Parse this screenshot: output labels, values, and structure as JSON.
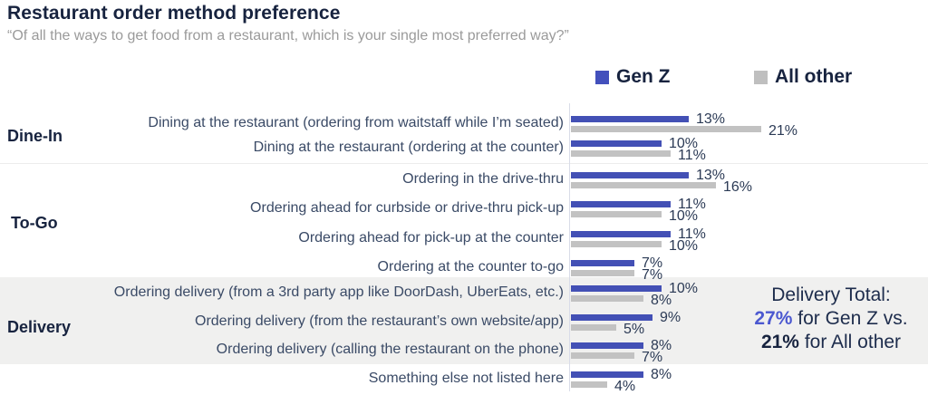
{
  "header": {
    "title": "Restaurant order method preference",
    "subtitle": "“Of all the ways to get food from a restaurant, which is your single most preferred way?”"
  },
  "legend": {
    "items": [
      {
        "label": "Gen Z",
        "color": "#4350bc"
      },
      {
        "label": "All other",
        "color": "#bfbfbf"
      }
    ]
  },
  "annotation": {
    "title_line": "Delivery Total:",
    "genz_value": "27%",
    "genz_text": " for Gen Z vs.",
    "other_value": "21%",
    "other_text": " for All other"
  },
  "chart_data": {
    "type": "bar",
    "orientation": "horizontal",
    "unit": "%",
    "series": [
      "Gen Z",
      "All other"
    ],
    "colors": {
      "genz_bar": "#4350b5",
      "other_bar": "#c2c2c2",
      "delivery_band": "#f0f0ef"
    },
    "xlim": [
      0,
      22
    ],
    "groups": [
      {
        "label": "Dine-In",
        "rows": [
          {
            "label": "Dining at the restaurant (ordering from waitstaff while I’m seated)",
            "genz": 13,
            "other": 21
          },
          {
            "label": "Dining at the restaurant (ordering at the counter)",
            "genz": 10,
            "other": 11
          }
        ]
      },
      {
        "label": "To-Go",
        "rows": [
          {
            "label": "Ordering in the drive-thru",
            "genz": 13,
            "other": 16
          },
          {
            "label": "Ordering ahead for curbside or drive-thru pick-up",
            "genz": 11,
            "other": 10
          },
          {
            "label": "Ordering ahead for pick-up at the counter",
            "genz": 11,
            "other": 10
          },
          {
            "label": "Ordering at the counter to-go",
            "genz": 7,
            "other": 7
          }
        ]
      },
      {
        "label": "Delivery",
        "rows": [
          {
            "label": "Ordering delivery (from a 3rd party app like DoorDash, UberEats, etc.)",
            "genz": 10,
            "other": 8
          },
          {
            "label": "Ordering delivery (from the restaurant’s own website/app)",
            "genz": 9,
            "other": 5
          },
          {
            "label": "Ordering delivery (calling the restaurant on the phone)",
            "genz": 8,
            "other": 7
          }
        ]
      },
      {
        "label": "",
        "rows": [
          {
            "label": "Something else not listed here",
            "genz": 8,
            "other": 4
          }
        ]
      }
    ]
  }
}
